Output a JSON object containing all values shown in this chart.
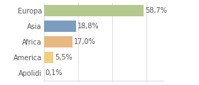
{
  "categories": [
    "Europa",
    "Asia",
    "Africa",
    "America",
    "Apolidi"
  ],
  "values": [
    58.7,
    18.8,
    17.0,
    5.5,
    0.1
  ],
  "labels": [
    "58,7%",
    "18,8%",
    "17,0%",
    "5,5%",
    "0,1%"
  ],
  "bar_colors": [
    "#b5c98e",
    "#7b9dc0",
    "#e8b882",
    "#f0d080",
    "#d0d0d0"
  ],
  "background_color": "#ffffff",
  "xlim": [
    0,
    70
  ],
  "label_fontsize": 7.0,
  "tick_fontsize": 7.0,
  "bar_height": 0.72,
  "grid_xticks": [
    0,
    20,
    40,
    60
  ],
  "grid_color": "#dddddd",
  "text_color": "#555555"
}
